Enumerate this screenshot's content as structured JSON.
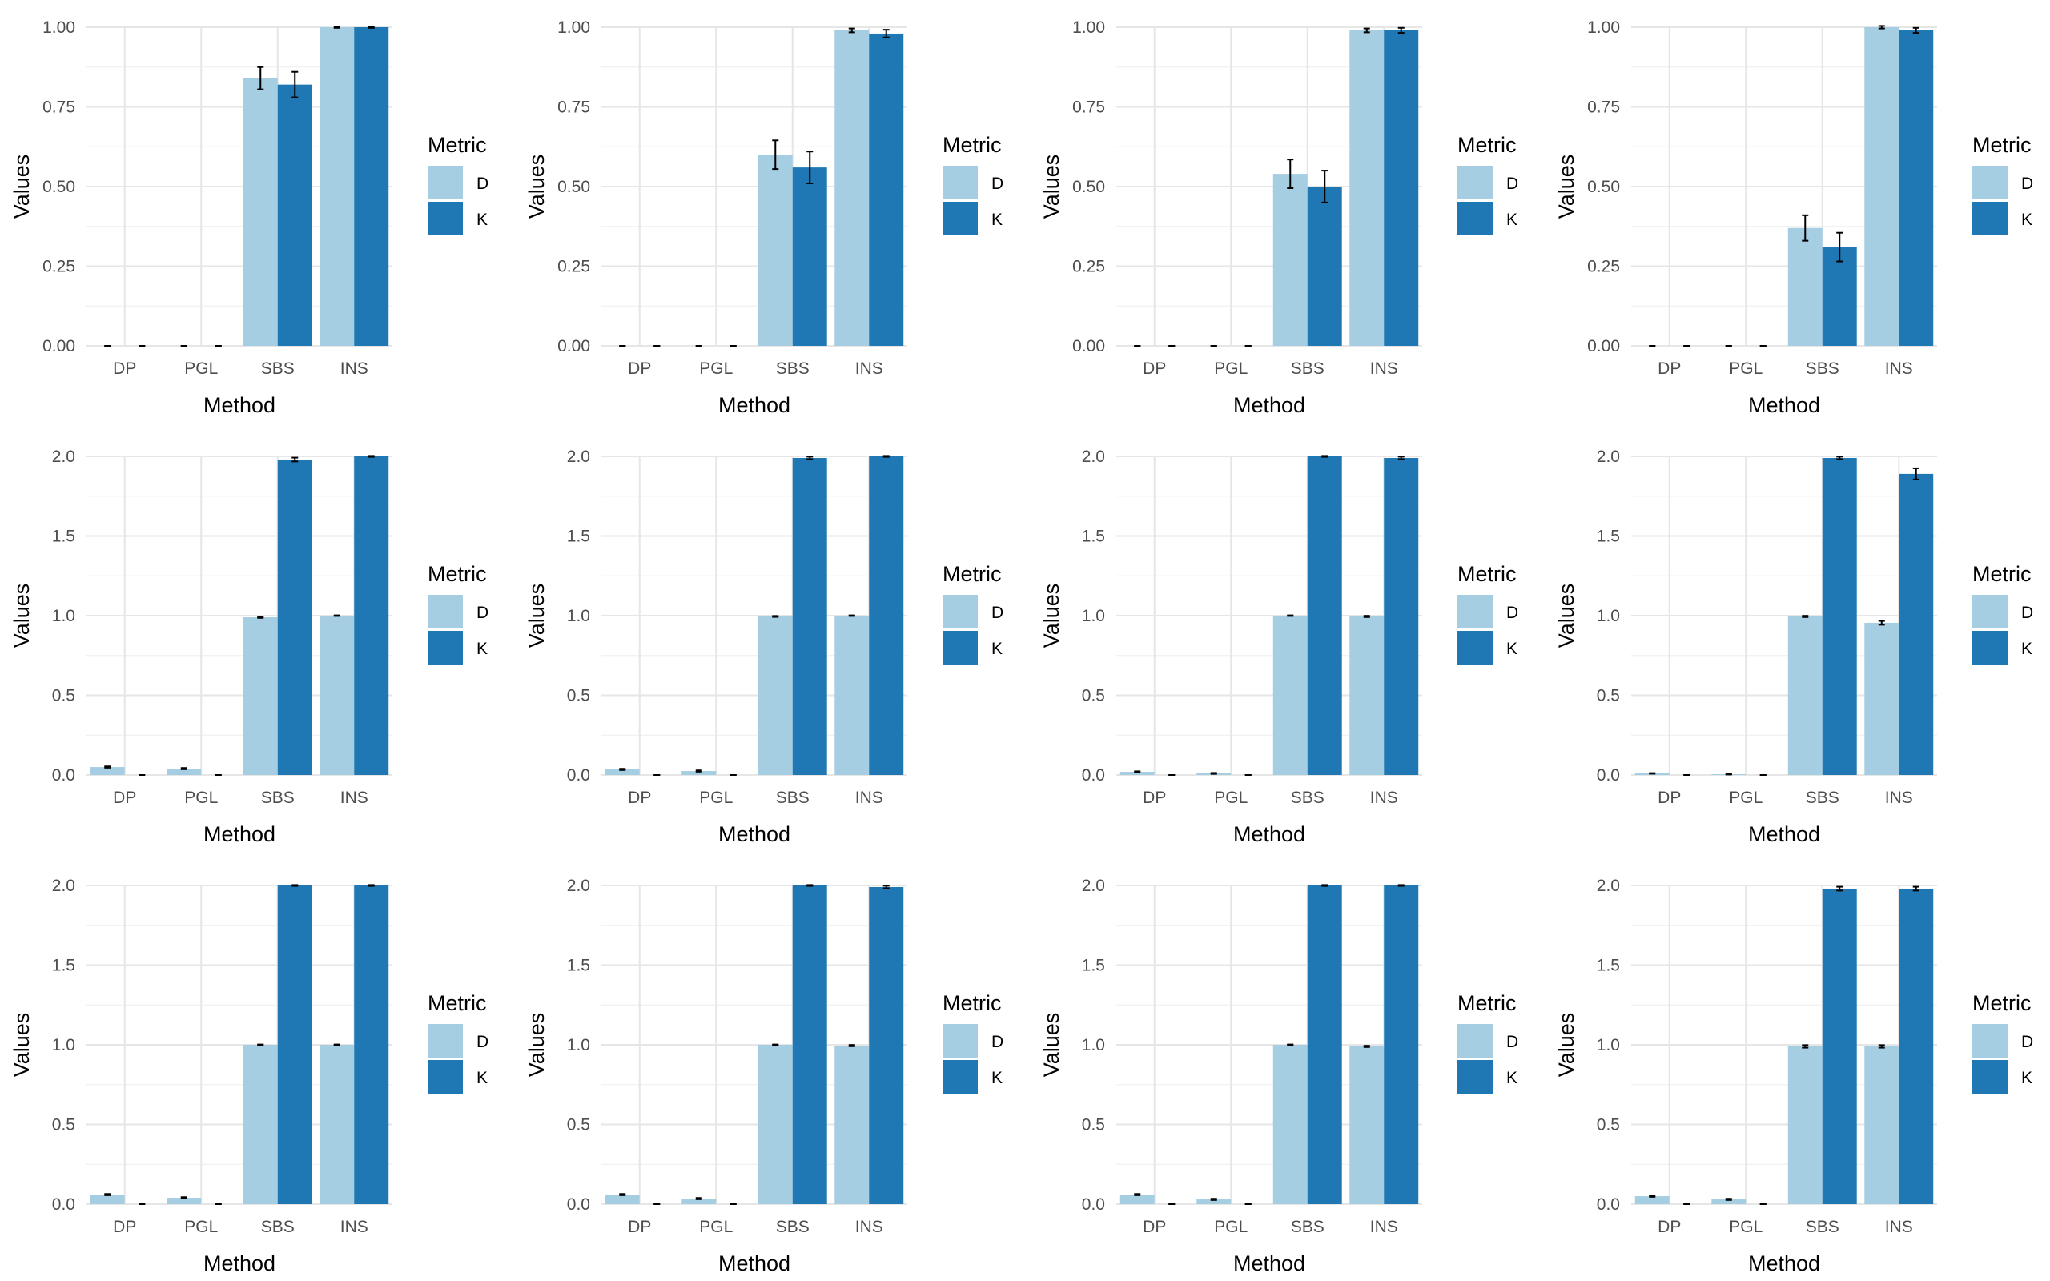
{
  "colors": {
    "D": "#a6cee3",
    "K": "#1f78b4",
    "grid_major": "#e6e6e6",
    "grid_minor": "#f1f1f1",
    "tick_text": "#4d4d4d",
    "error_bar": "#000000"
  },
  "chart_data": [
    {
      "type": "bar",
      "xlabel": "Method",
      "ylabel": "Values",
      "legend_title": "Metric",
      "legend_position": "right",
      "categories": [
        "DP",
        "PGL",
        "SBS",
        "INS"
      ],
      "ylim": [
        0,
        1
      ],
      "yticks": [
        "0.00",
        "0.25",
        "0.50",
        "0.75",
        "1.00"
      ],
      "ytick_values": [
        0,
        0.25,
        0.5,
        0.75,
        1.0
      ],
      "series": [
        {
          "name": "D",
          "values": [
            0,
            0,
            0.84,
            1.0
          ],
          "errors": [
            0,
            0,
            0.035,
            0.002
          ]
        },
        {
          "name": "K",
          "values": [
            0,
            0,
            0.82,
            1.0
          ],
          "errors": [
            0,
            0,
            0.04,
            0.002
          ]
        }
      ]
    },
    {
      "type": "bar",
      "xlabel": "Method",
      "ylabel": "Values",
      "legend_title": "Metric",
      "legend_position": "right",
      "categories": [
        "DP",
        "PGL",
        "SBS",
        "INS"
      ],
      "ylim": [
        0,
        1
      ],
      "yticks": [
        "0.00",
        "0.25",
        "0.50",
        "0.75",
        "1.00"
      ],
      "ytick_values": [
        0,
        0.25,
        0.5,
        0.75,
        1.0
      ],
      "series": [
        {
          "name": "D",
          "values": [
            0,
            0,
            0.6,
            0.99
          ],
          "errors": [
            0,
            0,
            0.045,
            0.006
          ]
        },
        {
          "name": "K",
          "values": [
            0,
            0,
            0.56,
            0.98
          ],
          "errors": [
            0,
            0,
            0.05,
            0.012
          ]
        }
      ]
    },
    {
      "type": "bar",
      "xlabel": "Method",
      "ylabel": "Values",
      "legend_title": "Metric",
      "legend_position": "right",
      "categories": [
        "DP",
        "PGL",
        "SBS",
        "INS"
      ],
      "ylim": [
        0,
        1
      ],
      "yticks": [
        "0.00",
        "0.25",
        "0.50",
        "0.75",
        "1.00"
      ],
      "ytick_values": [
        0,
        0.25,
        0.5,
        0.75,
        1.0
      ],
      "series": [
        {
          "name": "D",
          "values": [
            0,
            0,
            0.54,
            0.99
          ],
          "errors": [
            0,
            0,
            0.045,
            0.006
          ]
        },
        {
          "name": "K",
          "values": [
            0,
            0,
            0.5,
            0.99
          ],
          "errors": [
            0,
            0,
            0.05,
            0.008
          ]
        }
      ]
    },
    {
      "type": "bar",
      "xlabel": "Method",
      "ylabel": "Values",
      "legend_title": "Metric",
      "legend_position": "right",
      "categories": [
        "DP",
        "PGL",
        "SBS",
        "INS"
      ],
      "ylim": [
        0,
        1
      ],
      "yticks": [
        "0.00",
        "0.25",
        "0.50",
        "0.75",
        "1.00"
      ],
      "ytick_values": [
        0,
        0.25,
        0.5,
        0.75,
        1.0
      ],
      "series": [
        {
          "name": "D",
          "values": [
            0,
            0,
            0.37,
            1.0
          ],
          "errors": [
            0,
            0,
            0.04,
            0.004
          ]
        },
        {
          "name": "K",
          "values": [
            0,
            0,
            0.31,
            0.99
          ],
          "errors": [
            0,
            0,
            0.045,
            0.008
          ]
        }
      ]
    },
    {
      "type": "bar",
      "xlabel": "Method",
      "ylabel": "Values",
      "legend_title": "Metric",
      "legend_position": "right",
      "categories": [
        "DP",
        "PGL",
        "SBS",
        "INS"
      ],
      "ylim": [
        0,
        2
      ],
      "yticks": [
        "0.0",
        "0.5",
        "1.0",
        "1.5",
        "2.0"
      ],
      "ytick_values": [
        0,
        0.5,
        1.0,
        1.5,
        2.0
      ],
      "series": [
        {
          "name": "D",
          "values": [
            0.05,
            0.04,
            0.99,
            1.0
          ],
          "errors": [
            0.004,
            0.004,
            0.004,
            0.002
          ]
        },
        {
          "name": "K",
          "values": [
            0,
            0,
            1.98,
            2.0
          ],
          "errors": [
            0,
            0,
            0.012,
            0.003
          ]
        }
      ]
    },
    {
      "type": "bar",
      "xlabel": "Method",
      "ylabel": "Values",
      "legend_title": "Metric",
      "legend_position": "right",
      "categories": [
        "DP",
        "PGL",
        "SBS",
        "INS"
      ],
      "ylim": [
        0,
        2
      ],
      "yticks": [
        "0.0",
        "0.5",
        "1.0",
        "1.5",
        "2.0"
      ],
      "ytick_values": [
        0,
        0.5,
        1.0,
        1.5,
        2.0
      ],
      "series": [
        {
          "name": "D",
          "values": [
            0.035,
            0.025,
            0.995,
            1.0
          ],
          "errors": [
            0.004,
            0.004,
            0.003,
            0.002
          ]
        },
        {
          "name": "K",
          "values": [
            0,
            0,
            1.99,
            2.0
          ],
          "errors": [
            0,
            0,
            0.008,
            0.003
          ]
        }
      ]
    },
    {
      "type": "bar",
      "xlabel": "Method",
      "ylabel": "Values",
      "legend_title": "Metric",
      "legend_position": "right",
      "categories": [
        "DP",
        "PGL",
        "SBS",
        "INS"
      ],
      "ylim": [
        0,
        2
      ],
      "yticks": [
        "0.0",
        "0.5",
        "1.0",
        "1.5",
        "2.0"
      ],
      "ytick_values": [
        0,
        0.5,
        1.0,
        1.5,
        2.0
      ],
      "series": [
        {
          "name": "D",
          "values": [
            0.02,
            0.01,
            1.0,
            0.995
          ],
          "errors": [
            0.003,
            0.003,
            0.002,
            0.004
          ]
        },
        {
          "name": "K",
          "values": [
            0,
            0,
            2.0,
            1.99
          ],
          "errors": [
            0,
            0,
            0.003,
            0.008
          ]
        }
      ]
    },
    {
      "type": "bar",
      "xlabel": "Method",
      "ylabel": "Values",
      "legend_title": "Metric",
      "legend_position": "right",
      "categories": [
        "DP",
        "PGL",
        "SBS",
        "INS"
      ],
      "ylim": [
        0,
        2
      ],
      "yticks": [
        "0.0",
        "0.5",
        "1.0",
        "1.5",
        "2.0"
      ],
      "ytick_values": [
        0,
        0.5,
        1.0,
        1.5,
        2.0
      ],
      "series": [
        {
          "name": "D",
          "values": [
            0.01,
            0.005,
            0.995,
            0.955
          ],
          "errors": [
            0.002,
            0.002,
            0.004,
            0.012
          ]
        },
        {
          "name": "K",
          "values": [
            0,
            0,
            1.99,
            1.89
          ],
          "errors": [
            0,
            0,
            0.008,
            0.035
          ]
        }
      ]
    },
    {
      "type": "bar",
      "xlabel": "Method",
      "ylabel": "Values",
      "legend_title": "Metric",
      "legend_position": "right",
      "categories": [
        "DP",
        "PGL",
        "SBS",
        "INS"
      ],
      "ylim": [
        0,
        2
      ],
      "yticks": [
        "0.0",
        "0.5",
        "1.0",
        "1.5",
        "2.0"
      ],
      "ytick_values": [
        0,
        0.5,
        1.0,
        1.5,
        2.0
      ],
      "series": [
        {
          "name": "D",
          "values": [
            0.06,
            0.04,
            1.0,
            1.0
          ],
          "errors": [
            0.004,
            0.004,
            0.002,
            0.002
          ]
        },
        {
          "name": "K",
          "values": [
            0,
            0,
            2.0,
            2.0
          ],
          "errors": [
            0,
            0,
            0.003,
            0.003
          ]
        }
      ]
    },
    {
      "type": "bar",
      "xlabel": "Method",
      "ylabel": "Values",
      "legend_title": "Metric",
      "legend_position": "right",
      "categories": [
        "DP",
        "PGL",
        "SBS",
        "INS"
      ],
      "ylim": [
        0,
        2
      ],
      "yticks": [
        "0.0",
        "0.5",
        "1.0",
        "1.5",
        "2.0"
      ],
      "ytick_values": [
        0,
        0.5,
        1.0,
        1.5,
        2.0
      ],
      "series": [
        {
          "name": "D",
          "values": [
            0.06,
            0.035,
            1.0,
            0.995
          ],
          "errors": [
            0.004,
            0.004,
            0.002,
            0.004
          ]
        },
        {
          "name": "K",
          "values": [
            0,
            0,
            2.0,
            1.99
          ],
          "errors": [
            0,
            0,
            0.003,
            0.008
          ]
        }
      ]
    },
    {
      "type": "bar",
      "xlabel": "Method",
      "ylabel": "Values",
      "legend_title": "Metric",
      "legend_position": "right",
      "categories": [
        "DP",
        "PGL",
        "SBS",
        "INS"
      ],
      "ylim": [
        0,
        2
      ],
      "yticks": [
        "0.0",
        "0.5",
        "1.0",
        "1.5",
        "2.0"
      ],
      "ytick_values": [
        0,
        0.5,
        1.0,
        1.5,
        2.0
      ],
      "series": [
        {
          "name": "D",
          "values": [
            0.06,
            0.03,
            1.0,
            0.99
          ],
          "errors": [
            0.004,
            0.004,
            0.002,
            0.004
          ]
        },
        {
          "name": "K",
          "values": [
            0,
            0,
            2.0,
            2.0
          ],
          "errors": [
            0,
            0,
            0.003,
            0.003
          ]
        }
      ]
    },
    {
      "type": "bar",
      "xlabel": "Method",
      "ylabel": "Values",
      "legend_title": "Metric",
      "legend_position": "right",
      "categories": [
        "DP",
        "PGL",
        "SBS",
        "INS"
      ],
      "ylim": [
        0,
        2
      ],
      "yticks": [
        "0.0",
        "0.5",
        "1.0",
        "1.5",
        "2.0"
      ],
      "ytick_values": [
        0,
        0.5,
        1.0,
        1.5,
        2.0
      ],
      "series": [
        {
          "name": "D",
          "values": [
            0.05,
            0.03,
            0.99,
            0.99
          ],
          "errors": [
            0.004,
            0.004,
            0.008,
            0.008
          ]
        },
        {
          "name": "K",
          "values": [
            0,
            0,
            1.98,
            1.98
          ],
          "errors": [
            0,
            0,
            0.012,
            0.012
          ]
        }
      ]
    }
  ]
}
